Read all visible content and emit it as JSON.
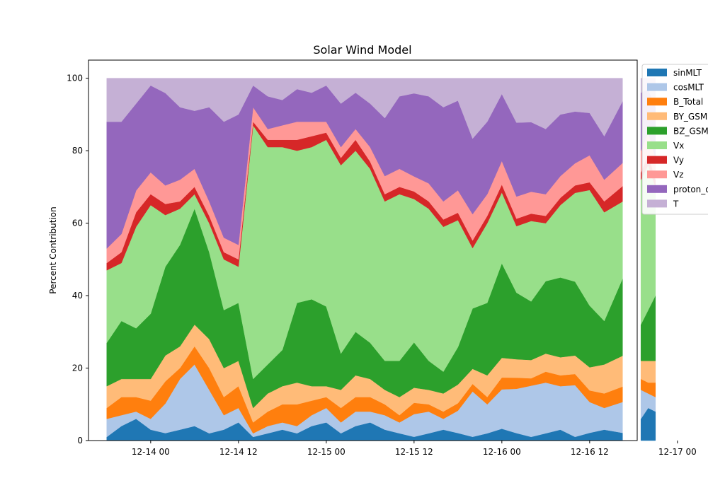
{
  "chart_data": {
    "type": "area",
    "stacked": true,
    "title": "Solar Wind Model",
    "xlabel": "",
    "ylabel": "Percent Contribution",
    "ylim": [
      0,
      105
    ],
    "yticks": [
      0,
      20,
      40,
      60,
      80,
      100
    ],
    "x_range_hours": [
      -8.5,
      66.5
    ],
    "xticks": [
      {
        "hour": 0,
        "label": "12-14 00"
      },
      {
        "hour": 12,
        "label": "12-14 12"
      },
      {
        "hour": 24,
        "label": "12-15 00"
      },
      {
        "hour": 36,
        "label": "12-15 12"
      },
      {
        "hour": 48,
        "label": "12-16 00"
      },
      {
        "hour": 60,
        "label": "12-16 12"
      },
      {
        "hour": 72,
        "label": "12-17 00"
      }
    ],
    "x_hours": [
      -6,
      -4,
      -2,
      0,
      2,
      4,
      6,
      8,
      10,
      12,
      14,
      16,
      18,
      20,
      22,
      24,
      26,
      28,
      30,
      32,
      34,
      36,
      38,
      40,
      42,
      44,
      46,
      48,
      50,
      52,
      54,
      56,
      58,
      60,
      62,
      64.5,
      null,
      67,
      68,
      69
    ],
    "grid": false,
    "legend_position": "outside-right",
    "series": [
      {
        "name": "sinMLT",
        "color": "#1f77b4",
        "values": [
          1,
          4,
          6,
          3,
          2,
          3,
          4,
          2,
          3,
          5,
          1,
          2,
          3,
          2,
          4,
          5,
          2,
          4,
          5,
          3,
          2,
          1,
          2,
          3,
          2,
          1,
          2,
          3,
          2,
          1,
          2,
          3,
          1,
          2,
          3,
          2,
          null,
          6,
          9,
          8
        ]
      },
      {
        "name": "cosMLT",
        "color": "#aec7e8",
        "values": [
          5,
          3,
          2,
          3,
          8,
          14,
          17,
          12,
          4,
          4,
          1,
          2,
          2,
          2,
          3,
          4,
          3,
          4,
          3,
          4,
          3,
          6,
          6,
          3,
          6,
          12,
          8,
          10,
          12,
          14,
          14,
          12,
          14,
          8,
          6,
          8,
          null,
          8,
          4,
          4
        ]
      },
      {
        "name": "B_Total",
        "color": "#ff7f0e",
        "values": [
          3,
          5,
          4,
          5,
          6,
          3,
          5,
          6,
          5,
          6,
          3,
          4,
          5,
          6,
          4,
          3,
          4,
          4,
          4,
          3,
          2,
          3,
          2,
          2,
          2,
          2,
          2,
          3,
          3,
          2,
          3,
          3,
          3,
          3,
          4,
          4,
          null,
          3,
          3,
          4
        ]
      },
      {
        "name": "BY_GSM",
        "color": "#ffbb78",
        "values": [
          6,
          5,
          5,
          6,
          7,
          6,
          6,
          8,
          8,
          7,
          4,
          5,
          5,
          6,
          4,
          3,
          5,
          6,
          5,
          4,
          5,
          4,
          4,
          5,
          5,
          4,
          6,
          5,
          5,
          5,
          5,
          5,
          5,
          6,
          8,
          8,
          null,
          5,
          6,
          6
        ]
      },
      {
        "name": "BZ_GSM",
        "color": "#2ca02c",
        "values": [
          12,
          16,
          14,
          18,
          24,
          28,
          32,
          24,
          16,
          16,
          8,
          8,
          10,
          22,
          24,
          22,
          10,
          12,
          10,
          8,
          10,
          12,
          8,
          6,
          10,
          16,
          20,
          24,
          18,
          16,
          20,
          22,
          20,
          16,
          12,
          20,
          null,
          10,
          14,
          18
        ]
      },
      {
        "name": "Vx",
        "color": "#98df8a",
        "values": [
          20,
          16,
          28,
          30,
          14,
          10,
          4,
          8,
          14,
          10,
          70,
          60,
          56,
          42,
          42,
          46,
          52,
          50,
          48,
          44,
          46,
          38,
          42,
          40,
          34,
          16,
          22,
          18,
          18,
          22,
          16,
          20,
          24,
          30,
          30,
          20,
          null,
          40,
          40,
          30
        ]
      },
      {
        "name": "Vy",
        "color": "#d62728",
        "values": [
          2,
          3,
          4,
          3,
          3,
          2,
          2,
          2,
          2,
          2,
          1,
          2,
          2,
          3,
          3,
          2,
          2,
          3,
          2,
          2,
          2,
          2,
          2,
          2,
          2,
          2,
          2,
          2,
          2,
          2,
          2,
          2,
          2,
          2,
          3,
          4,
          null,
          2,
          3,
          2
        ]
      },
      {
        "name": "Vz",
        "color": "#ff9896",
        "values": [
          4,
          5,
          6,
          6,
          5,
          6,
          5,
          4,
          4,
          4,
          4,
          3,
          4,
          5,
          4,
          3,
          3,
          3,
          4,
          5,
          5,
          4,
          5,
          5,
          6,
          7,
          6,
          6,
          6,
          6,
          6,
          6,
          6,
          7,
          6,
          6,
          null,
          6,
          6,
          6
        ]
      },
      {
        "name": "proton_density",
        "color": "#9467bd",
        "values": [
          35,
          31,
          24,
          24,
          25,
          20,
          16,
          26,
          32,
          36,
          6,
          9,
          7,
          9,
          8,
          10,
          12,
          10,
          12,
          16,
          20,
          22,
          24,
          26,
          24,
          20,
          20,
          17,
          20,
          19,
          18,
          17,
          14,
          11,
          12,
          16,
          null,
          16,
          12,
          14
        ]
      },
      {
        "name": "T",
        "color": "#c5b0d5",
        "values": [
          12,
          12,
          7,
          2,
          4,
          8,
          9,
          8,
          12,
          10,
          2,
          5,
          6,
          3,
          4,
          2,
          7,
          4,
          7,
          11,
          5,
          4,
          5,
          8,
          6,
          16,
          12,
          4,
          12,
          12,
          14,
          10,
          9,
          9,
          16,
          6,
          null,
          4,
          3,
          8
        ]
      }
    ]
  }
}
